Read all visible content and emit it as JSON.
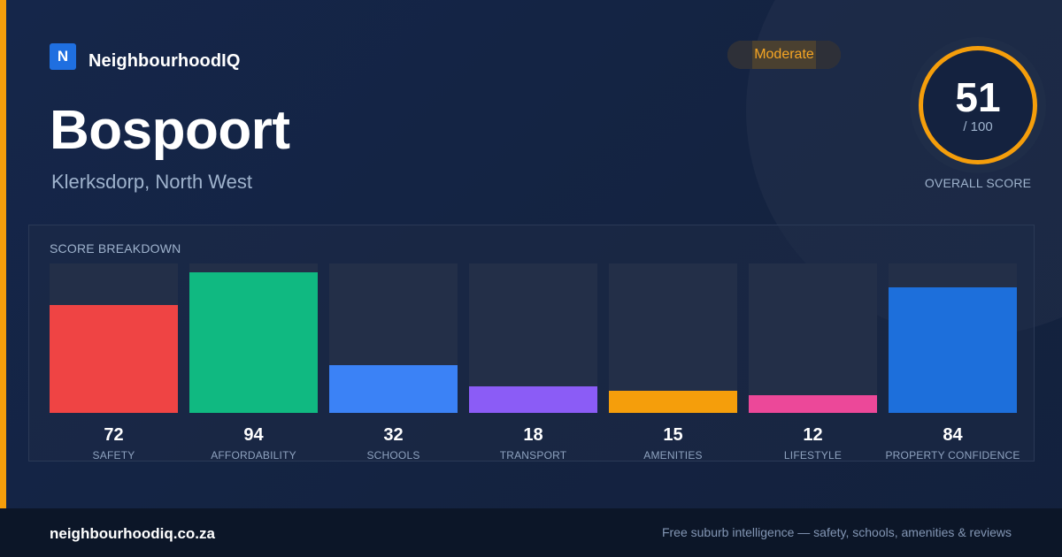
{
  "brand": {
    "logo_letter": "N",
    "name": "NeighbourhoodIQ"
  },
  "suburb": {
    "name": "Bospoort",
    "location": "Klerksdorp, North West"
  },
  "rating_badge": "Moderate",
  "overall": {
    "score": "51",
    "max": "/ 100",
    "label": "OVERALL SCORE",
    "ring_color": "#f59e0b"
  },
  "breakdown": {
    "title": "SCORE BREAKDOWN",
    "max_value": 100,
    "items": [
      {
        "value": "72",
        "score": 72,
        "label": "SAFETY",
        "color": "#ef4444"
      },
      {
        "value": "94",
        "score": 94,
        "label": "AFFORDABILITY",
        "color": "#10b981"
      },
      {
        "value": "32",
        "score": 32,
        "label": "SCHOOLS",
        "color": "#3b82f6"
      },
      {
        "value": "18",
        "score": 18,
        "label": "TRANSPORT",
        "color": "#8b5cf6"
      },
      {
        "value": "15",
        "score": 15,
        "label": "AMENITIES",
        "color": "#f59e0b"
      },
      {
        "value": "12",
        "score": 12,
        "label": "LIFESTYLE",
        "color": "#ec4899"
      },
      {
        "value": "84",
        "score": 84,
        "label": "PROPERTY CONFIDENCE",
        "color": "#1d6fdb"
      }
    ]
  },
  "footer": {
    "domain": "neighbourhoodiq.co.za",
    "tagline": "Free suburb intelligence — safety, schools, amenities & reviews"
  },
  "colors": {
    "accent": "#f59e0b",
    "brand_blue": "#1f6fe0",
    "background": "#152442"
  }
}
